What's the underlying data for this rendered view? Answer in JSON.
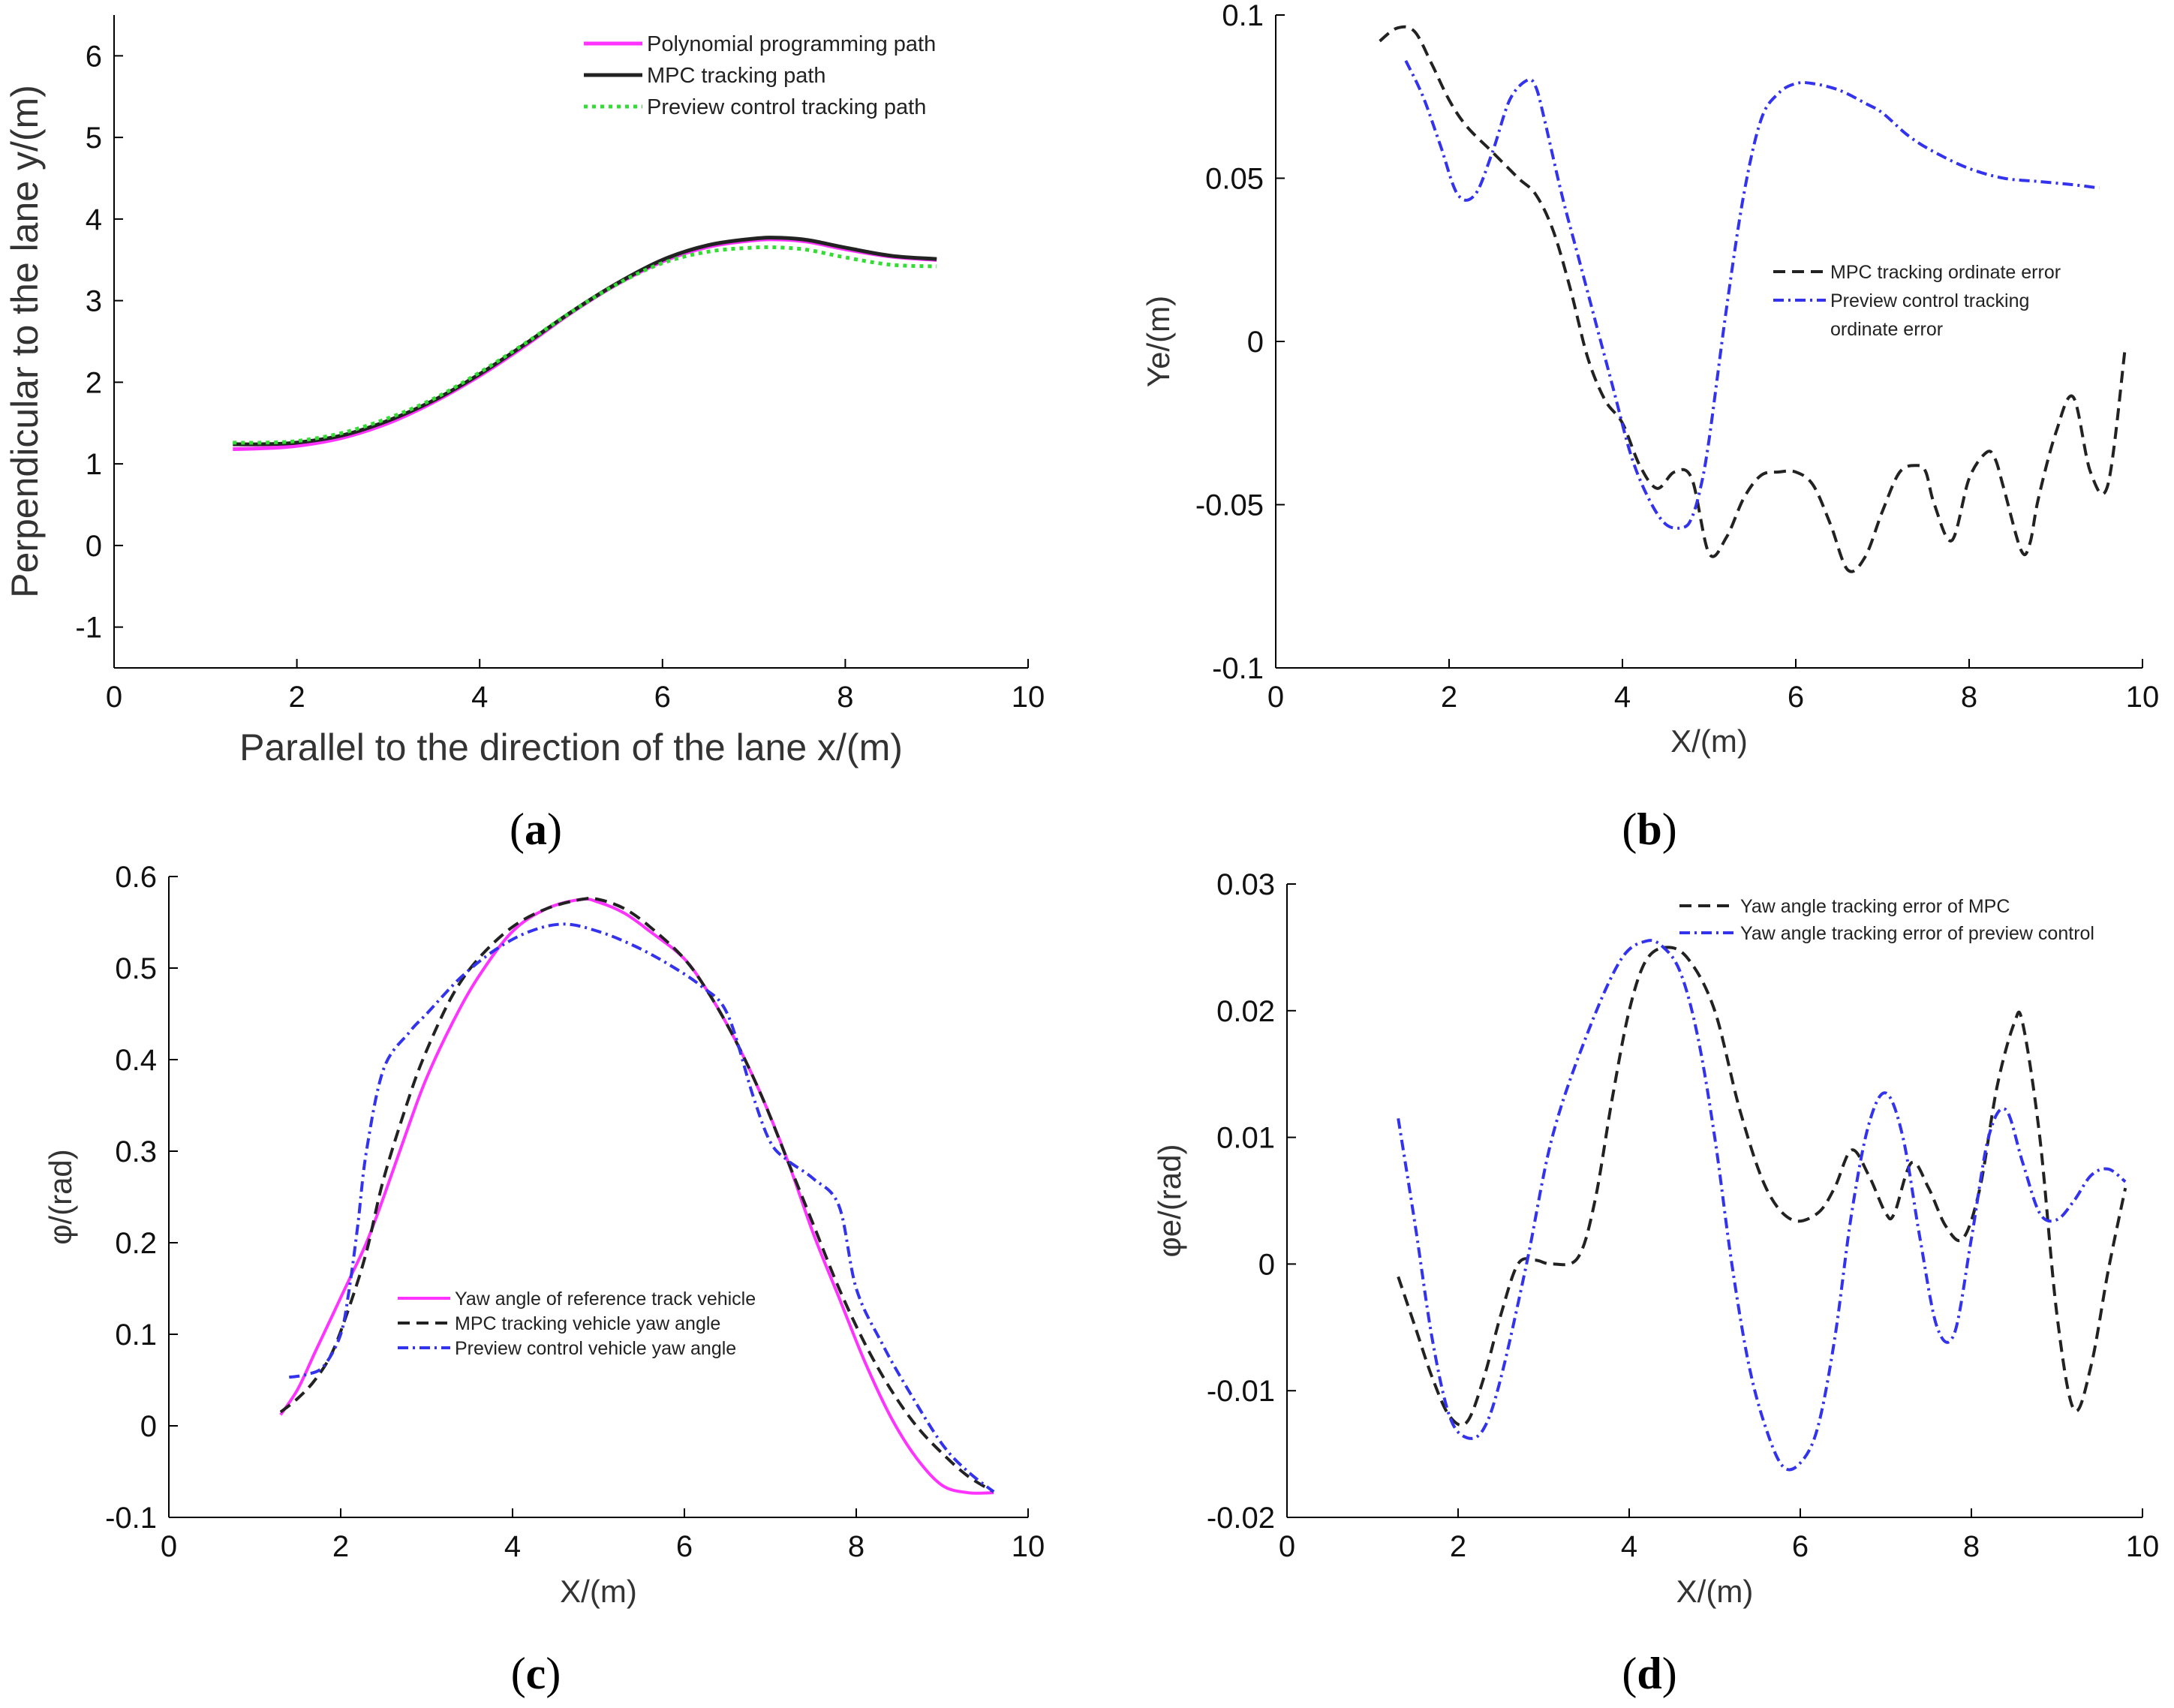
{
  "captions": [
    "a",
    "b",
    "c",
    "d"
  ],
  "chart_data": [
    {
      "type": "line",
      "panel": "a",
      "xlabel": "Parallel to the direction of the lane x/(m)",
      "ylabel": "Perpendicular to the lane y/(m)",
      "xlim": [
        0,
        10
      ],
      "ylim": [
        -1.5,
        6.5
      ],
      "xticks": [
        0,
        2,
        4,
        6,
        8,
        10
      ],
      "yticks": [
        -1,
        0,
        1,
        2,
        3,
        4,
        5,
        6
      ],
      "legend_position": "top-right",
      "series": [
        {
          "name": "Polynomial programming path",
          "color": "#ff33ff",
          "dash": "solid",
          "x": [
            1.3,
            1.6,
            2.0,
            2.5,
            3.0,
            3.5,
            4.0,
            4.5,
            5.0,
            5.5,
            6.0,
            6.5,
            7.0,
            7.3,
            7.6,
            8.0,
            8.5,
            9.0
          ],
          "y": [
            1.18,
            1.19,
            1.22,
            1.32,
            1.5,
            1.76,
            2.08,
            2.45,
            2.85,
            3.2,
            3.48,
            3.66,
            3.74,
            3.75,
            3.72,
            3.63,
            3.54,
            3.5
          ]
        },
        {
          "name": "MPC tracking path",
          "color": "#222222",
          "dash": "solid",
          "x": [
            1.3,
            1.6,
            2.0,
            2.5,
            3.0,
            3.5,
            4.0,
            4.5,
            5.0,
            5.5,
            6.0,
            6.5,
            7.0,
            7.3,
            7.6,
            8.0,
            8.5,
            9.0
          ],
          "y": [
            1.24,
            1.24,
            1.26,
            1.35,
            1.53,
            1.78,
            2.1,
            2.47,
            2.86,
            3.21,
            3.5,
            3.68,
            3.76,
            3.77,
            3.74,
            3.65,
            3.55,
            3.51
          ]
        },
        {
          "name": "Preview control tracking path",
          "color": "#33dd33",
          "dash": "dotted",
          "x": [
            1.3,
            1.6,
            2.0,
            2.5,
            3.0,
            3.5,
            4.0,
            4.5,
            5.0,
            5.5,
            6.0,
            6.5,
            7.0,
            7.3,
            7.6,
            8.0,
            8.5,
            9.0
          ],
          "y": [
            1.26,
            1.26,
            1.28,
            1.38,
            1.56,
            1.8,
            2.12,
            2.48,
            2.86,
            3.2,
            3.46,
            3.6,
            3.65,
            3.65,
            3.62,
            3.53,
            3.44,
            3.42
          ]
        }
      ]
    },
    {
      "type": "line",
      "panel": "b",
      "xlabel": "X/(m)",
      "ylabel": "Ye/(m)",
      "xlim": [
        0,
        10
      ],
      "ylim": [
        -0.1,
        0.1
      ],
      "xticks": [
        0,
        2,
        4,
        6,
        8,
        10
      ],
      "yticks": [
        -0.1,
        -0.05,
        0,
        0.05,
        0.1
      ],
      "ytick_labels": [
        "-0.1",
        "-0.05",
        "0",
        "0.05",
        "0.1"
      ],
      "legend_position": "right",
      "series": [
        {
          "name": "MPC tracking ordinate error",
          "color": "#222222",
          "dash": "dashed",
          "x": [
            1.2,
            1.4,
            1.6,
            1.8,
            2.0,
            2.2,
            2.5,
            2.8,
            3.0,
            3.2,
            3.4,
            3.6,
            3.8,
            4.0,
            4.2,
            4.4,
            4.6,
            4.8,
            5.0,
            5.2,
            5.4,
            5.6,
            5.8,
            6.0,
            6.2,
            6.4,
            6.6,
            6.8,
            7.0,
            7.2,
            7.4,
            7.5,
            7.6,
            7.8,
            8.0,
            8.2,
            8.3,
            8.4,
            8.6,
            8.7,
            8.8,
            9.0,
            9.2,
            9.4,
            9.6,
            9.8
          ],
          "y": [
            0.092,
            0.096,
            0.095,
            0.085,
            0.074,
            0.066,
            0.058,
            0.05,
            0.045,
            0.034,
            0.016,
            -0.005,
            -0.018,
            -0.025,
            -0.038,
            -0.045,
            -0.04,
            -0.042,
            -0.065,
            -0.06,
            -0.048,
            -0.041,
            -0.04,
            -0.04,
            -0.044,
            -0.056,
            -0.07,
            -0.066,
            -0.052,
            -0.04,
            -0.038,
            -0.04,
            -0.05,
            -0.061,
            -0.042,
            -0.034,
            -0.036,
            -0.045,
            -0.064,
            -0.062,
            -0.048,
            -0.028,
            -0.017,
            -0.04,
            -0.044,
            -0.002
          ]
        },
        {
          "name": "Preview control tracking ordinate error",
          "color": "#3333ee",
          "dash": "dashdot",
          "x": [
            1.5,
            1.7,
            1.9,
            2.1,
            2.3,
            2.5,
            2.7,
            2.9,
            3.0,
            3.1,
            3.3,
            3.5,
            3.7,
            3.9,
            4.1,
            4.3,
            4.5,
            4.7,
            4.8,
            4.9,
            5.0,
            5.2,
            5.4,
            5.6,
            5.8,
            6.0,
            6.2,
            6.5,
            6.8,
            7.0,
            7.3,
            7.6,
            8.0,
            8.4,
            8.8,
            9.2,
            9.5
          ],
          "y": [
            0.086,
            0.075,
            0.06,
            0.045,
            0.045,
            0.058,
            0.074,
            0.08,
            0.078,
            0.068,
            0.045,
            0.025,
            0.005,
            -0.015,
            -0.035,
            -0.048,
            -0.056,
            -0.057,
            -0.054,
            -0.045,
            -0.03,
            0.01,
            0.045,
            0.068,
            0.076,
            0.079,
            0.079,
            0.077,
            0.073,
            0.07,
            0.063,
            0.058,
            0.053,
            0.05,
            0.049,
            0.048,
            0.047
          ]
        }
      ],
      "legend_lines": [
        "MPC tracking ordinate error",
        "Preview control tracking",
        "ordinate error"
      ]
    },
    {
      "type": "line",
      "panel": "c",
      "xlabel": "X/(m)",
      "ylabel": "φ/(rad)",
      "xlim": [
        0,
        10
      ],
      "ylim": [
        -0.1,
        0.6
      ],
      "xticks": [
        0,
        2,
        4,
        6,
        8,
        10
      ],
      "yticks": [
        -0.1,
        0,
        0.1,
        0.2,
        0.3,
        0.4,
        0.5,
        0.6
      ],
      "ytick_labels": [
        "-0.1",
        "0",
        "0.1",
        "0.2",
        "0.3",
        "0.4",
        "0.5",
        "0.6"
      ],
      "legend_position": "bottom-center",
      "series": [
        {
          "name": "Yaw angle of reference track vehicle",
          "color": "#ff33ff",
          "dash": "solid",
          "x": [
            1.3,
            1.5,
            1.7,
            1.9,
            2.1,
            2.3,
            2.5,
            2.8,
            3.0,
            3.3,
            3.6,
            4.0,
            4.4,
            4.8,
            5.0,
            5.3,
            5.6,
            6.0,
            6.3,
            6.6,
            6.9,
            7.2,
            7.5,
            7.8,
            8.1,
            8.4,
            8.7,
            9.0,
            9.3,
            9.6
          ],
          "y": [
            0.012,
            0.04,
            0.08,
            0.12,
            0.16,
            0.2,
            0.25,
            0.33,
            0.38,
            0.44,
            0.49,
            0.54,
            0.565,
            0.575,
            0.572,
            0.56,
            0.54,
            0.51,
            0.47,
            0.42,
            0.36,
            0.29,
            0.21,
            0.14,
            0.07,
            0.01,
            -0.035,
            -0.065,
            -0.073,
            -0.073
          ]
        },
        {
          "name": "MPC tracking vehicle yaw angle",
          "color": "#222222",
          "dash": "dashed",
          "x": [
            1.3,
            1.5,
            1.7,
            1.9,
            2.1,
            2.3,
            2.5,
            2.8,
            3.0,
            3.3,
            3.6,
            4.0,
            4.4,
            4.8,
            5.0,
            5.3,
            5.6,
            6.0,
            6.3,
            6.6,
            6.9,
            7.2,
            7.5,
            7.8,
            8.1,
            8.4,
            8.7,
            9.0,
            9.3,
            9.6
          ],
          "y": [
            0.015,
            0.03,
            0.05,
            0.08,
            0.13,
            0.19,
            0.27,
            0.36,
            0.41,
            0.47,
            0.51,
            0.545,
            0.565,
            0.575,
            0.575,
            0.565,
            0.545,
            0.51,
            0.47,
            0.42,
            0.36,
            0.29,
            0.22,
            0.15,
            0.09,
            0.04,
            0.0,
            -0.03,
            -0.055,
            -0.072
          ]
        },
        {
          "name": "Preview control vehicle yaw angle",
          "color": "#3333ee",
          "dash": "dashdot",
          "x": [
            1.4,
            1.6,
            1.8,
            2.0,
            2.1,
            2.2,
            2.3,
            2.5,
            2.8,
            3.0,
            3.4,
            3.8,
            4.2,
            4.6,
            5.0,
            5.4,
            5.8,
            6.2,
            6.5,
            6.8,
            7.0,
            7.2,
            7.5,
            7.8,
            8.0,
            8.3,
            8.6,
            9.0,
            9.3,
            9.6
          ],
          "y": [
            0.053,
            0.056,
            0.065,
            0.1,
            0.15,
            0.22,
            0.3,
            0.39,
            0.43,
            0.45,
            0.49,
            0.52,
            0.54,
            0.548,
            0.54,
            0.525,
            0.505,
            0.48,
            0.45,
            0.36,
            0.31,
            0.29,
            0.27,
            0.24,
            0.15,
            0.09,
            0.04,
            -0.02,
            -0.05,
            -0.072
          ]
        }
      ]
    },
    {
      "type": "line",
      "panel": "d",
      "xlabel": "X/(m)",
      "ylabel": "φe/(rad)",
      "xlim": [
        0,
        10
      ],
      "ylim": [
        -0.02,
        0.03
      ],
      "xticks": [
        0,
        2,
        4,
        6,
        8,
        10
      ],
      "yticks": [
        -0.02,
        -0.01,
        0,
        0.01,
        0.02,
        0.03
      ],
      "ytick_labels": [
        "-0.02",
        "-0.01",
        "0",
        "0.01",
        "0.02",
        "0.03"
      ],
      "legend_position": "top-right",
      "series": [
        {
          "name": "Yaw angle tracking error of MPC",
          "color": "#222222",
          "dash": "dashed",
          "x": [
            1.3,
            1.5,
            1.7,
            1.9,
            2.1,
            2.3,
            2.5,
            2.7,
            2.9,
            3.1,
            3.4,
            3.6,
            3.8,
            4.0,
            4.2,
            4.45,
            4.7,
            5.0,
            5.3,
            5.6,
            5.9,
            6.2,
            6.4,
            6.6,
            6.8,
            7.0,
            7.1,
            7.3,
            7.5,
            7.7,
            7.9,
            8.1,
            8.3,
            8.5,
            8.6,
            8.8,
            9.0,
            9.2,
            9.4,
            9.6,
            9.8
          ],
          "y": [
            -0.001,
            -0.005,
            -0.009,
            -0.012,
            -0.0125,
            -0.009,
            -0.004,
            0.0,
            0.0003,
            0.0,
            0.0005,
            0.005,
            0.013,
            0.02,
            0.024,
            0.025,
            0.024,
            0.02,
            0.012,
            0.006,
            0.0035,
            0.004,
            0.006,
            0.009,
            0.007,
            0.004,
            0.004,
            0.008,
            0.006,
            0.003,
            0.002,
            0.006,
            0.014,
            0.019,
            0.019,
            0.01,
            -0.004,
            -0.0115,
            -0.008,
            -0.0005,
            0.006
          ]
        },
        {
          "name": "Yaw angle tracking error of preview control",
          "color": "#3333ee",
          "dash": "dashdot",
          "x": [
            1.3,
            1.5,
            1.7,
            1.9,
            2.1,
            2.3,
            2.5,
            2.8,
            3.1,
            3.5,
            3.9,
            4.2,
            4.4,
            4.6,
            4.8,
            5.0,
            5.2,
            5.4,
            5.6,
            5.8,
            6.0,
            6.2,
            6.4,
            6.6,
            6.8,
            7.0,
            7.2,
            7.4,
            7.6,
            7.8,
            8.0,
            8.2,
            8.4,
            8.6,
            8.8,
            9.0,
            9.2,
            9.4,
            9.6,
            9.8
          ],
          "y": [
            0.0115,
            0.003,
            -0.006,
            -0.012,
            -0.0137,
            -0.013,
            -0.009,
            0.0,
            0.01,
            0.018,
            0.024,
            0.0255,
            0.025,
            0.023,
            0.018,
            0.01,
            0.0,
            -0.008,
            -0.013,
            -0.016,
            -0.0157,
            -0.013,
            -0.006,
            0.004,
            0.011,
            0.0135,
            0.01,
            0.002,
            -0.005,
            -0.0055,
            0.002,
            0.01,
            0.0122,
            0.008,
            0.004,
            0.0035,
            0.005,
            0.007,
            0.0075,
            0.0065
          ]
        }
      ]
    }
  ]
}
